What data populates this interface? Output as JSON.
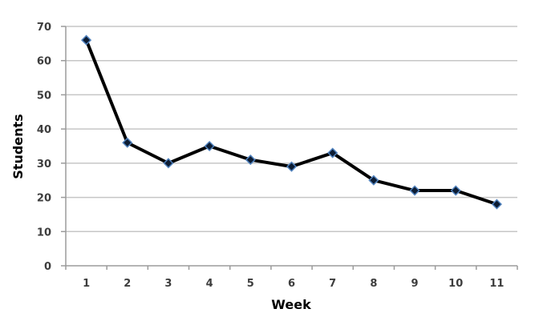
{
  "chart_data": {
    "type": "line",
    "title": "",
    "xlabel": "Week",
    "ylabel": "Students",
    "categories": [
      1,
      2,
      3,
      4,
      5,
      6,
      7,
      8,
      9,
      10,
      11
    ],
    "values": [
      66,
      36,
      30,
      35,
      31,
      29,
      33,
      25,
      22,
      22,
      18
    ],
    "ylim": [
      0,
      70
    ],
    "ytick_step": 10,
    "ytick_labels": [
      "0",
      "10",
      "20",
      "30",
      "40",
      "50",
      "60",
      "70"
    ],
    "grid": "horizontal",
    "legend": "none",
    "colors": {
      "line": "#000000",
      "marker_fill": "#0c1c33",
      "marker_edge": "#4f81bd",
      "gridline": "#c6c6c6",
      "axis": "#9b9b9b",
      "tick_label": "#3d3d3d",
      "axis_title": "#000000",
      "background": "#ffffff"
    }
  }
}
